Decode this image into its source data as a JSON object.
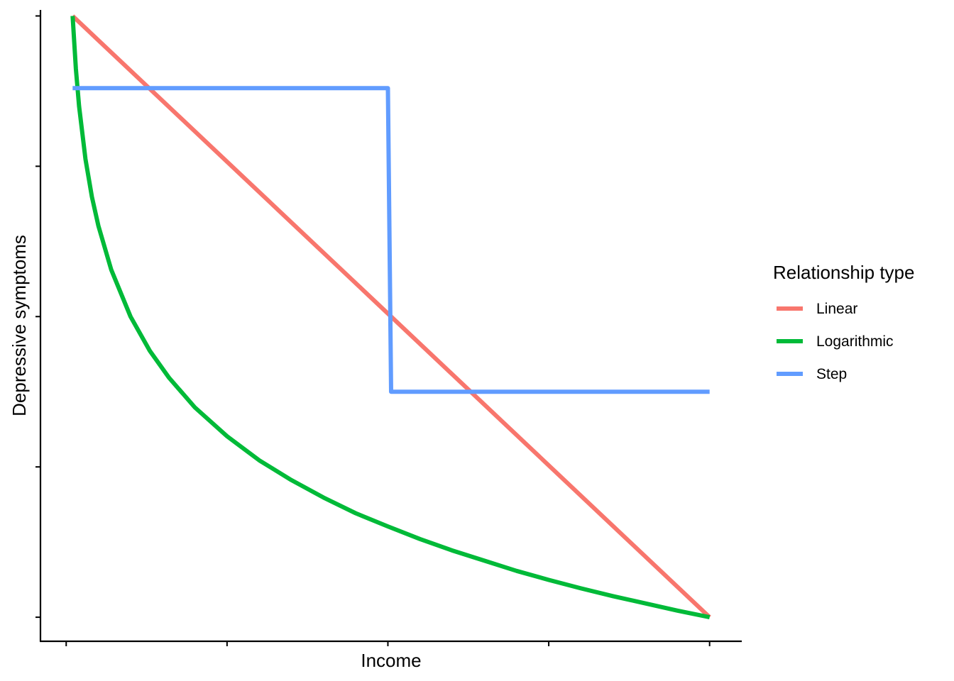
{
  "chart_data": {
    "type": "line",
    "title": "",
    "xlabel": "Income",
    "ylabel": "Depressive symptoms",
    "xlim": [
      -0.04,
      1.05
    ],
    "ylim": [
      -0.04,
      1.01
    ],
    "x_ticks": [
      0,
      0.25,
      0.5,
      0.75,
      1
    ],
    "y_ticks": [
      0,
      0.25,
      0.5,
      0.75,
      1
    ],
    "grid": false,
    "legend": {
      "title": "Relationship type",
      "placement": "right",
      "entries": [
        {
          "label": "Linear",
          "color": "#F8766D"
        },
        {
          "label": "Logarithmic",
          "color": "#00BA38"
        },
        {
          "label": "Step",
          "color": "#619CFF"
        }
      ]
    },
    "series": [
      {
        "name": "Linear",
        "color": "#F8766D",
        "x": [
          0.01,
          1.0
        ],
        "y": [
          1.0,
          0.0
        ]
      },
      {
        "name": "Logarithmic",
        "color": "#00BA38",
        "x": [
          0.01,
          0.015,
          0.02,
          0.03,
          0.04,
          0.05,
          0.07,
          0.1,
          0.13,
          0.16,
          0.2,
          0.25,
          0.3,
          0.35,
          0.4,
          0.45,
          0.5,
          0.55,
          0.6,
          0.65,
          0.7,
          0.75,
          0.8,
          0.85,
          0.9,
          0.95,
          1.0
        ],
        "y": [
          1.0,
          0.912,
          0.85,
          0.762,
          0.699,
          0.651,
          0.578,
          0.5,
          0.443,
          0.398,
          0.349,
          0.301,
          0.261,
          0.228,
          0.199,
          0.173,
          0.151,
          0.13,
          0.111,
          0.094,
          0.077,
          0.062,
          0.048,
          0.035,
          0.023,
          0.011,
          0.0
        ]
      },
      {
        "name": "Step",
        "color": "#619CFF",
        "x": [
          0.01,
          0.5,
          0.505,
          1.0
        ],
        "y": [
          0.88,
          0.88,
          0.375,
          0.375
        ]
      }
    ]
  }
}
